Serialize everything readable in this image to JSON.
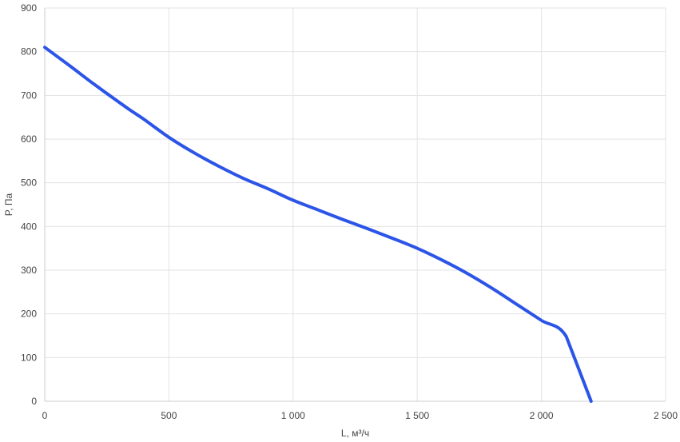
{
  "chart_data": {
    "type": "line",
    "title": "",
    "xlabel": "L, м³/ч",
    "ylabel": "P, Па",
    "xlim": [
      0,
      2500
    ],
    "ylim": [
      0,
      900
    ],
    "x_ticks": [
      0,
      500,
      1000,
      1500,
      2000,
      2500
    ],
    "x_tick_labels": [
      "0",
      "500",
      "1 000",
      "1 500",
      "2 000",
      "2 500"
    ],
    "y_ticks": [
      0,
      100,
      200,
      300,
      400,
      500,
      600,
      700,
      800,
      900
    ],
    "y_tick_labels": [
      "0",
      "100",
      "200",
      "300",
      "400",
      "500",
      "600",
      "700",
      "800",
      "900"
    ],
    "grid": true,
    "colors": {
      "line": "#2c55e8",
      "grid": "#e3e3e3",
      "axis": "#cccccc"
    },
    "series": [
      {
        "x": [
          0,
          100,
          200,
          300,
          350,
          400,
          500,
          600,
          700,
          800,
          900,
          1000,
          1100,
          1200,
          1300,
          1400,
          1500,
          1600,
          1700,
          1800,
          1900,
          2000,
          2100,
          2200
        ],
        "y": [
          810,
          768,
          725,
          684,
          664,
          645,
          604,
          569,
          538,
          510,
          486,
          460,
          438,
          416,
          395,
          373,
          350,
          323,
          293,
          259,
          222,
          185,
          148,
          0
        ]
      }
    ]
  }
}
